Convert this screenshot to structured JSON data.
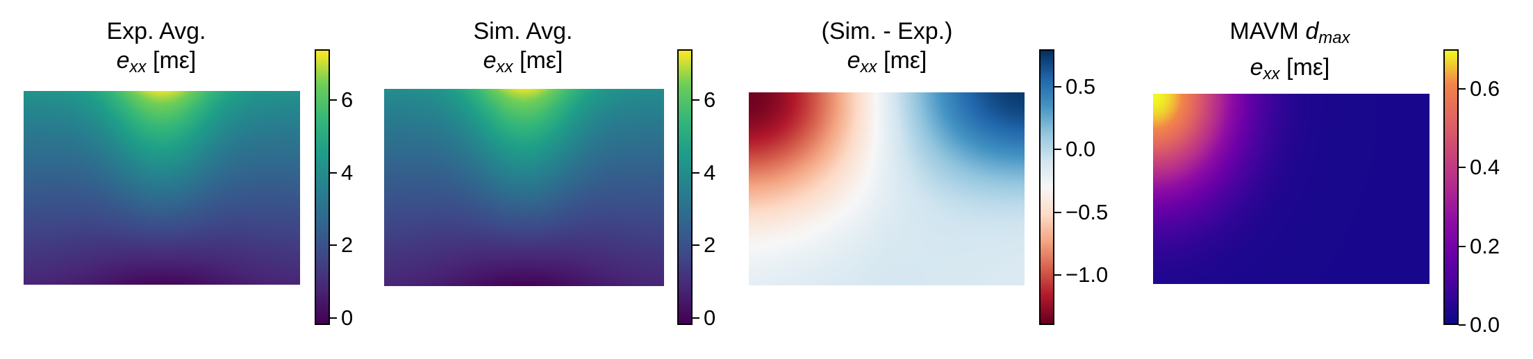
{
  "chart_data": [
    {
      "type": "heatmap",
      "title_line1": "Exp. Avg.",
      "title_var": "e",
      "title_sub": "xx",
      "title_unit": "[mε]",
      "colormap": "viridis",
      "colorbar_range": [
        -0.2,
        7.4
      ],
      "colorbar_ticks": [
        {
          "v": 0,
          "label": "0"
        },
        {
          "v": 2,
          "label": "2"
        },
        {
          "v": 4,
          "label": "4"
        },
        {
          "v": 6,
          "label": "6"
        }
      ],
      "field": {
        "top_center": 7.2,
        "top_edges": 4.2,
        "bottom_center": 0.0,
        "bottom_edges": 0.8
      },
      "grid": false
    },
    {
      "type": "heatmap",
      "title_line1": "Sim. Avg.",
      "title_var": "e",
      "title_sub": "xx",
      "title_unit": "[mε]",
      "colormap": "viridis",
      "colorbar_range": [
        -0.2,
        7.4
      ],
      "colorbar_ticks": [
        {
          "v": 0,
          "label": "0"
        },
        {
          "v": 2,
          "label": "2"
        },
        {
          "v": 4,
          "label": "4"
        },
        {
          "v": 6,
          "label": "6"
        }
      ],
      "field": {
        "top_center": 7.2,
        "top_edges": 4.0,
        "bottom_center": -0.1,
        "bottom_edges": 0.8
      },
      "grid": false
    },
    {
      "type": "heatmap",
      "title_line1": "(Sim. - Exp.)",
      "title_var": "e",
      "title_sub": "xx",
      "title_unit": "[mε]",
      "colormap": "RdBu",
      "colorbar_range": [
        -1.4,
        0.8
      ],
      "colorbar_ticks": [
        {
          "v": -1.0,
          "label": "−1.0"
        },
        {
          "v": -0.5,
          "label": "−0.5"
        },
        {
          "v": 0.0,
          "label": "0.0"
        },
        {
          "v": 0.5,
          "label": "0.5"
        }
      ],
      "field": {
        "top_left": -1.3,
        "top_right": 0.75,
        "bottom": -0.15
      },
      "grid": false
    },
    {
      "type": "heatmap",
      "title_line1": "MAVM",
      "title_var": "d",
      "title_sub": "max",
      "title_unit": "[mε]",
      "colormap": "plasma",
      "colorbar_range": [
        0.0,
        0.7
      ],
      "colorbar_ticks": [
        {
          "v": 0.0,
          "label": "0.0"
        },
        {
          "v": 0.2,
          "label": "0.2"
        },
        {
          "v": 0.4,
          "label": "0.4"
        },
        {
          "v": 0.6,
          "label": "0.6"
        }
      ],
      "field": {
        "top_left": 0.68,
        "rest": 0.02
      },
      "grid": false
    }
  ]
}
